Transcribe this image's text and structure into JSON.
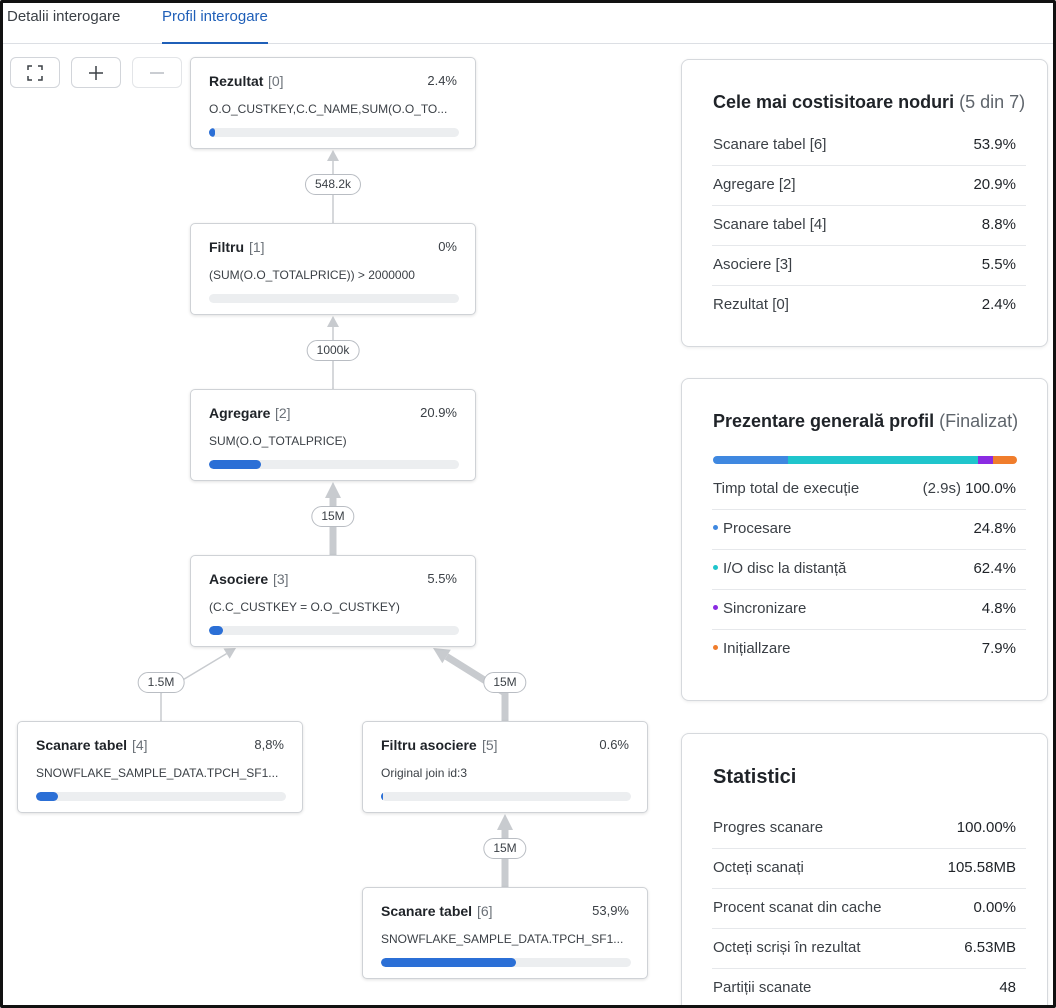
{
  "tabs": [
    {
      "label": "Detalii interogare",
      "active": false
    },
    {
      "label": "Profil interogare",
      "active": true
    }
  ],
  "toolbar": {
    "icons": [
      "fullscreen-icon",
      "plus-icon",
      "minus-icon"
    ]
  },
  "graph": {
    "nodes": [
      {
        "title": "Rezultat",
        "id": "[0]",
        "pct": "2.4%",
        "desc": "O.O_CUSTKEY,C.C_NAME,SUM(O.O_TO...",
        "fill": 0.024
      },
      {
        "title": "Filtru",
        "id": "[1]",
        "pct": "0%",
        "desc": "(SUM(O.O_TOTALPRICE)) > 2000000",
        "fill": 0
      },
      {
        "title": "Agregare",
        "id": "[2]",
        "pct": "20.9%",
        "desc": "SUM(O.O_TOTALPRICE)",
        "fill": 0.209
      },
      {
        "title": "Asociere",
        "id": "[3]",
        "pct": "5.5%",
        "desc": "(C.C_CUSTKEY = O.O_CUSTKEY)",
        "fill": 0.055
      },
      {
        "title": "Scanare tabel",
        "id": "[4]",
        "pct": "8,8%",
        "desc": "SNOWFLAKE_SAMPLE_DATA.TPCH_SF1...",
        "fill": 0.088
      },
      {
        "title": "Filtru asociere",
        "id": "[5]",
        "pct": "0.6%",
        "desc": "Original join id:3",
        "fill": 0.006
      },
      {
        "title": "Scanare tabel",
        "id": "[6]",
        "pct": "53,9%",
        "desc": "SNOWFLAKE_SAMPLE_DATA.TPCH_SF1...",
        "fill": 0.539
      }
    ],
    "edges": [
      {
        "from": 1,
        "to": 0,
        "label": "548.2k"
      },
      {
        "from": 2,
        "to": 1,
        "label": "1000k"
      },
      {
        "from": 3,
        "to": 2,
        "label": "15M"
      },
      {
        "from": 4,
        "to": 3,
        "label": "1.5M"
      },
      {
        "from": 5,
        "to": 3,
        "label": "15M"
      },
      {
        "from": 6,
        "to": 5,
        "label": "15M"
      }
    ]
  },
  "costly_nodes": {
    "title": "Cele mai costisitoare noduri",
    "subtitle": "(5 din 7)",
    "rows": [
      {
        "label": "Scanare tabel [6]",
        "value": "53.9%"
      },
      {
        "label": "Agregare [2]",
        "value": "20.9%"
      },
      {
        "label": "Scanare tabel [4]",
        "value": "8.8%"
      },
      {
        "label": "Asociere [3]",
        "value": "5.5%"
      },
      {
        "label": "Rezultat [0]",
        "value": "2.4%"
      }
    ]
  },
  "profile_overview": {
    "title": "Prezentare generală profil",
    "status": "(Finalizat)",
    "total_label": "Timp total de execuție",
    "total_time": "(2.9s)",
    "total_pct": "100.0%",
    "items": [
      {
        "label": "Procesare",
        "value": "24.8%",
        "fraction": 0.248,
        "color": "#3f88e0"
      },
      {
        "label": "I/O disc la distanță",
        "value": "62.4%",
        "fraction": 0.624,
        "color": "#1fc5cc"
      },
      {
        "label": "Sincronizare",
        "value": "4.8%",
        "fraction": 0.048,
        "color": "#8a2be2"
      },
      {
        "label": "Inițiallzare",
        "value": "7.9%",
        "fraction": 0.079,
        "color": "#f07d2c"
      }
    ]
  },
  "statistics": {
    "title": "Statistici",
    "rows": [
      {
        "label": "Progres scanare",
        "value": "100.00%"
      },
      {
        "label": "Octeți scanați",
        "value": "105.58MB"
      },
      {
        "label": "Procent scanat din cache",
        "value": "0.00%"
      },
      {
        "label": "Octeți scriși în rezultat",
        "value": "6.53MB"
      },
      {
        "label": "Partiții scanate",
        "value": "48"
      }
    ]
  }
}
